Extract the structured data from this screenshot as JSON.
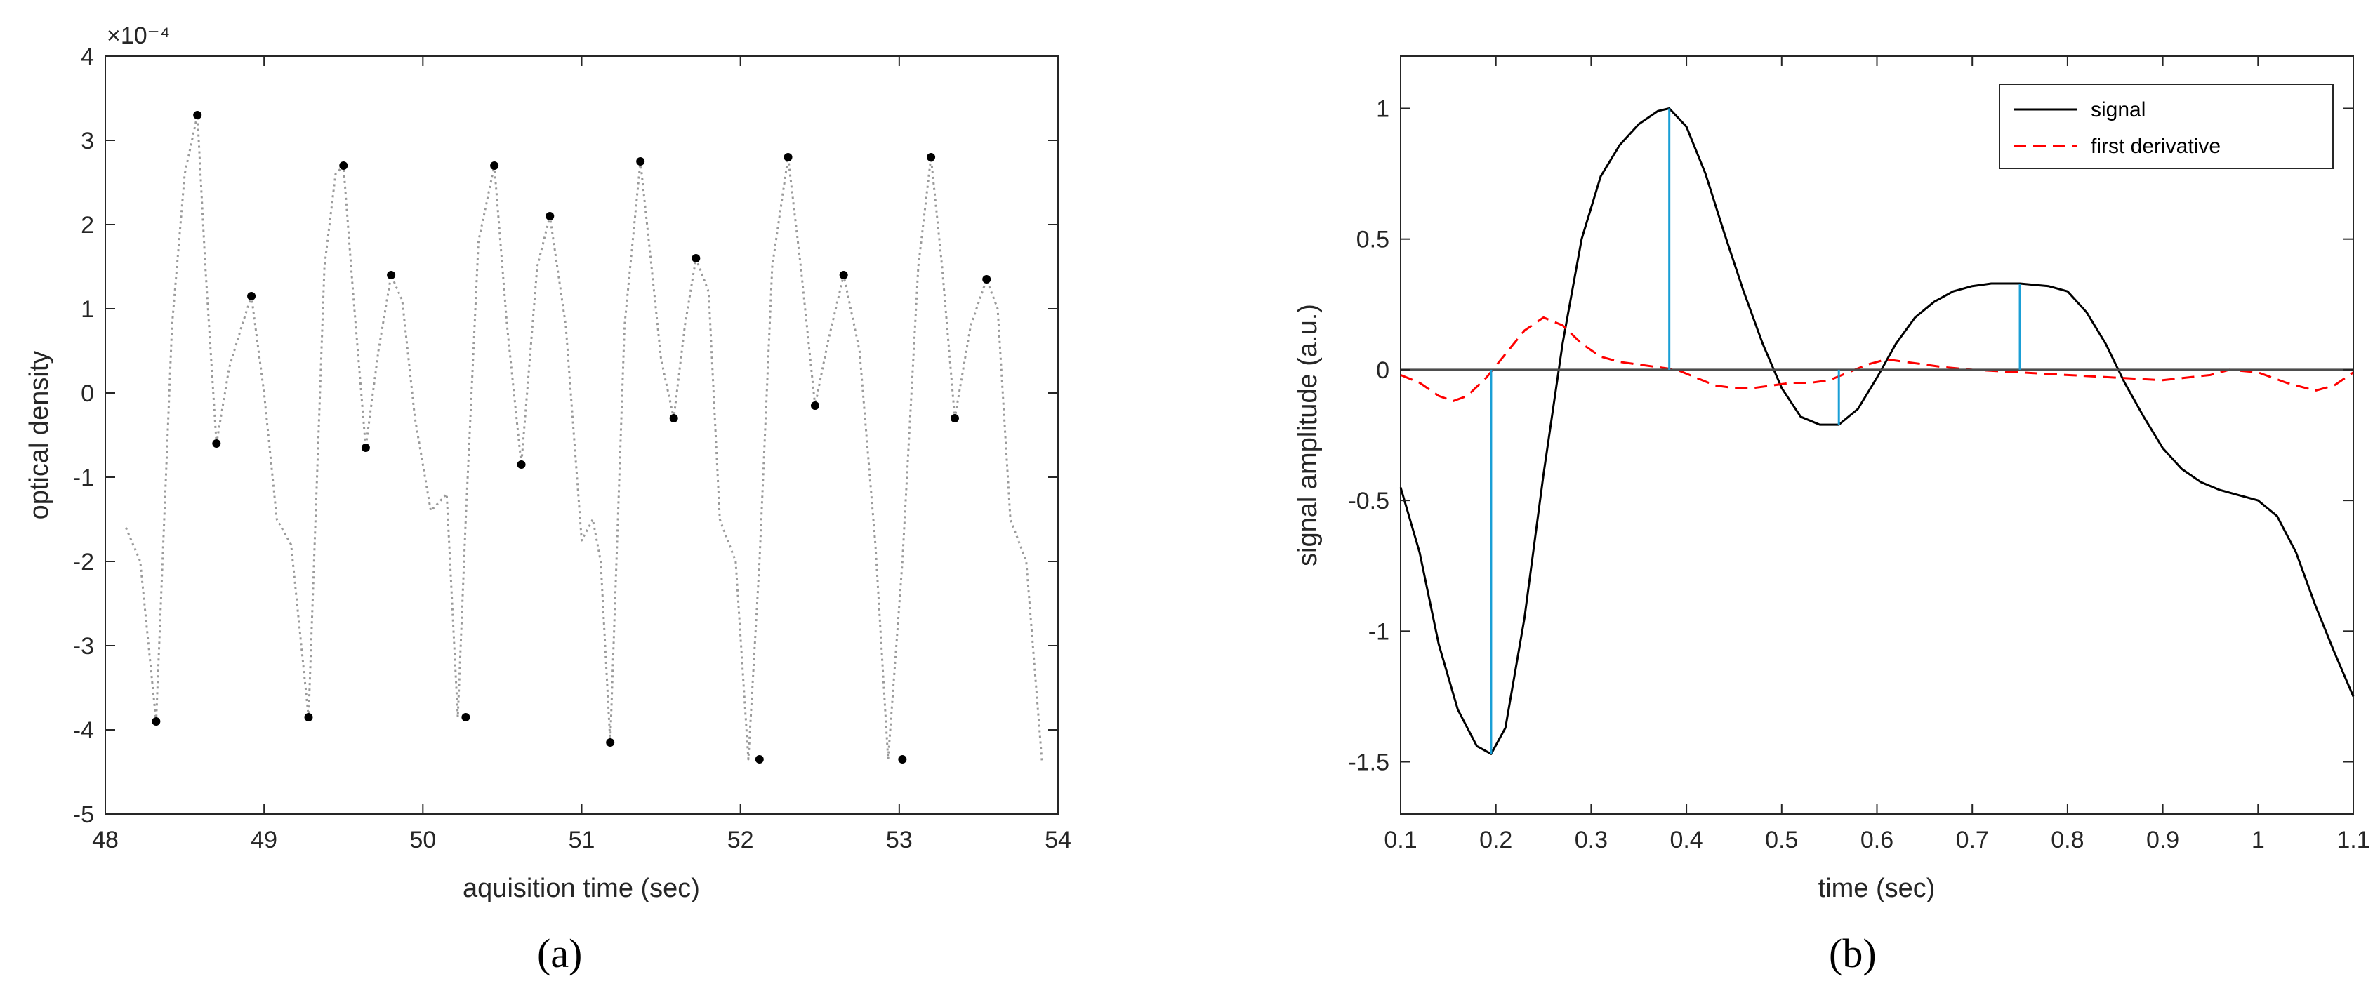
{
  "chart_data": [
    {
      "type": "scatter",
      "panel_label": "(a)",
      "xlabel": "aquisition time (sec)",
      "ylabel": "optical density",
      "exponent_label": "×10⁻⁴",
      "xlim": [
        48,
        54
      ],
      "ylim": [
        -5,
        4
      ],
      "xticks": [
        48,
        49,
        50,
        51,
        52,
        53,
        54
      ],
      "yticks": [
        -5,
        -4,
        -3,
        -2,
        -1,
        0,
        1,
        2,
        3,
        4
      ],
      "grid": false,
      "line_color": "#9a9a9a",
      "marker_color": "#000000",
      "series": [
        {
          "style": "dotted-line",
          "x": [
            48.13,
            48.22,
            48.32,
            48.42,
            48.5,
            48.58,
            48.63,
            48.7,
            48.78,
            48.86,
            48.92,
            49.0,
            49.08,
            49.17,
            49.28,
            49.38,
            49.45,
            49.5,
            49.56,
            49.64,
            49.72,
            49.8,
            49.87,
            49.95,
            50.05,
            50.15,
            50.22,
            50.27,
            50.35,
            50.45,
            50.53,
            50.62,
            50.72,
            50.8,
            50.9,
            51.0,
            51.07,
            51.12,
            51.18,
            51.27,
            51.37,
            51.44,
            51.5,
            51.58,
            51.65,
            51.72,
            51.8,
            51.87,
            51.97,
            52.05,
            52.12,
            52.2,
            52.3,
            52.38,
            52.47,
            52.55,
            52.65,
            52.75,
            52.85,
            52.93,
            53.02,
            53.12,
            53.2,
            53.27,
            53.35,
            53.45,
            53.55,
            53.62,
            53.7,
            53.8,
            53.9
          ],
          "y": [
            -1.6,
            -2.0,
            -3.9,
            0.8,
            2.6,
            3.3,
            1.5,
            -0.6,
            0.3,
            0.8,
            1.15,
            0.0,
            -1.5,
            -1.8,
            -3.85,
            1.5,
            2.6,
            2.7,
            1.2,
            -0.65,
            0.5,
            1.4,
            1.1,
            -0.3,
            -1.4,
            -1.2,
            -3.85,
            -1.5,
            1.8,
            2.7,
            0.8,
            -0.85,
            1.5,
            2.1,
            0.8,
            -1.75,
            -1.5,
            -2.0,
            -4.15,
            0.8,
            2.75,
            1.5,
            0.4,
            -0.3,
            0.8,
            1.6,
            1.2,
            -1.5,
            -2.0,
            -4.35,
            -2.0,
            1.5,
            2.8,
            1.5,
            -0.15,
            0.6,
            1.4,
            0.5,
            -1.8,
            -4.35,
            -2.0,
            1.5,
            2.8,
            1.5,
            -0.3,
            0.8,
            1.35,
            1.0,
            -1.5,
            -2.0,
            -4.4
          ]
        },
        {
          "style": "markers",
          "x": [
            48.32,
            48.58,
            48.7,
            48.92,
            49.28,
            49.5,
            49.64,
            49.8,
            50.27,
            50.45,
            50.62,
            50.8,
            51.18,
            51.37,
            51.58,
            51.72,
            52.12,
            52.3,
            52.47,
            52.65,
            53.02,
            53.2,
            53.35,
            53.55
          ],
          "y": [
            -3.9,
            3.3,
            -0.6,
            1.15,
            -3.85,
            2.7,
            -0.65,
            1.4,
            -3.85,
            2.7,
            -0.85,
            2.1,
            -4.15,
            2.75,
            -0.3,
            1.6,
            -4.35,
            2.8,
            -0.15,
            1.4,
            -4.35,
            2.8,
            -0.3,
            1.35
          ]
        }
      ]
    },
    {
      "type": "line",
      "panel_label": "(b)",
      "xlabel": "time (sec)",
      "ylabel": "signal amplitude (a.u.)",
      "xlim": [
        0.1,
        1.1
      ],
      "ylim": [
        -1.7,
        1.2
      ],
      "xticks": [
        0.1,
        0.2,
        0.3,
        0.4,
        0.5,
        0.6,
        0.7,
        0.8,
        0.9,
        1,
        1.1
      ],
      "yticks": [
        -1.5,
        -1,
        -0.5,
        0,
        0.5,
        1
      ],
      "grid": false,
      "legend_position": "top-right",
      "series": [
        {
          "name": "signal",
          "color": "#000000",
          "style": "solid",
          "x": [
            0.1,
            0.12,
            0.14,
            0.16,
            0.18,
            0.195,
            0.21,
            0.23,
            0.25,
            0.27,
            0.29,
            0.31,
            0.33,
            0.35,
            0.37,
            0.382,
            0.4,
            0.42,
            0.44,
            0.46,
            0.48,
            0.5,
            0.52,
            0.54,
            0.56,
            0.58,
            0.6,
            0.62,
            0.64,
            0.66,
            0.68,
            0.7,
            0.72,
            0.75,
            0.78,
            0.8,
            0.82,
            0.84,
            0.86,
            0.88,
            0.9,
            0.92,
            0.94,
            0.96,
            0.98,
            1.0,
            1.02,
            1.04,
            1.06,
            1.08,
            1.1
          ],
          "y": [
            -0.45,
            -0.7,
            -1.05,
            -1.3,
            -1.44,
            -1.47,
            -1.37,
            -0.95,
            -0.4,
            0.1,
            0.5,
            0.74,
            0.86,
            0.94,
            0.99,
            1.0,
            0.93,
            0.75,
            0.52,
            0.3,
            0.1,
            -0.07,
            -0.18,
            -0.21,
            -0.21,
            -0.15,
            -0.03,
            0.1,
            0.2,
            0.26,
            0.3,
            0.32,
            0.33,
            0.33,
            0.32,
            0.3,
            0.22,
            0.1,
            -0.05,
            -0.18,
            -0.3,
            -0.38,
            -0.43,
            -0.46,
            -0.48,
            -0.5,
            -0.56,
            -0.7,
            -0.9,
            -1.08,
            -1.25
          ]
        },
        {
          "name": "first derivative",
          "color": "#ff0000",
          "style": "dashed",
          "x": [
            0.1,
            0.12,
            0.14,
            0.155,
            0.17,
            0.19,
            0.21,
            0.23,
            0.25,
            0.27,
            0.29,
            0.31,
            0.33,
            0.35,
            0.37,
            0.39,
            0.41,
            0.43,
            0.45,
            0.47,
            0.49,
            0.51,
            0.53,
            0.55,
            0.57,
            0.59,
            0.61,
            0.63,
            0.65,
            0.67,
            0.7,
            0.75,
            0.8,
            0.85,
            0.9,
            0.95,
            0.97,
            1.0,
            1.03,
            1.06,
            1.08,
            1.1
          ],
          "y": [
            -0.02,
            -0.05,
            -0.1,
            -0.12,
            -0.1,
            -0.03,
            0.06,
            0.15,
            0.2,
            0.17,
            0.1,
            0.05,
            0.03,
            0.02,
            0.01,
            0.0,
            -0.03,
            -0.06,
            -0.07,
            -0.07,
            -0.06,
            -0.05,
            -0.05,
            -0.04,
            -0.01,
            0.02,
            0.04,
            0.03,
            0.02,
            0.01,
            0.0,
            -0.01,
            -0.02,
            -0.03,
            -0.04,
            -0.02,
            0.0,
            -0.01,
            -0.05,
            -0.08,
            -0.06,
            -0.01
          ]
        },
        {
          "name": "",
          "color": "#4d4d4d",
          "style": "solid",
          "x": [
            0.1,
            1.1
          ],
          "y": [
            0,
            0
          ]
        },
        {
          "name": "",
          "color": "#1a9fd6",
          "style": "stems",
          "x": [
            0.195,
            0.382,
            0.56,
            0.75
          ],
          "y": [
            -1.47,
            1.0,
            -0.21,
            0.33
          ]
        }
      ]
    }
  ]
}
